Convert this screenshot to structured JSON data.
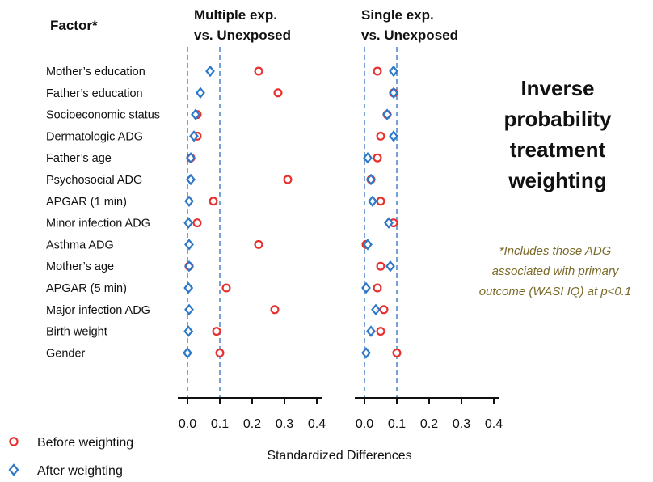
{
  "chart_data": {
    "type": "scatter",
    "factor_header": "Factor*",
    "factors": [
      "Mother’s education",
      "Father’s education",
      "Socioeconomic status",
      "Dermatologic ADG",
      "Father’s age",
      "Psychosocial ADG",
      "APGAR (1 min)",
      "Minor infection ADG",
      "Asthma ADG",
      "Mother’s age",
      "APGAR (5 min)",
      "Major infection ADG",
      "Birth weight",
      "Gender"
    ],
    "panels": [
      {
        "title_line1": "Multiple exp.",
        "title_line2": "vs. Unexposed",
        "xlim": [
          0,
          0.4
        ],
        "ticks": [
          "0.0",
          "0.1",
          "0.2",
          "0.3",
          "0.4"
        ],
        "reference_lines": [
          0,
          0.1
        ],
        "series": [
          {
            "name": "Before weighting",
            "values": [
              0.22,
              0.28,
              0.03,
              0.03,
              0.01,
              0.31,
              0.08,
              0.03,
              0.22,
              0.005,
              0.12,
              0.27,
              0.09,
              0.1
            ]
          },
          {
            "name": "After weighting",
            "values": [
              0.07,
              0.04,
              0.025,
              0.02,
              0.01,
              0.01,
              0.005,
              0.003,
              0.005,
              0.005,
              0.003,
              0.005,
              0.003,
              0.0
            ]
          }
        ]
      },
      {
        "title_line1": "Single exp.",
        "title_line2": "vs. Unexposed",
        "xlim": [
          0,
          0.4
        ],
        "ticks": [
          "0.0",
          "0.1",
          "0.2",
          "0.3",
          "0.4"
        ],
        "reference_lines": [
          0,
          0.1
        ],
        "series": [
          {
            "name": "Before weighting",
            "values": [
              0.04,
              0.09,
              0.07,
              0.05,
              0.04,
              0.02,
              0.05,
              0.09,
              0.005,
              0.05,
              0.04,
              0.06,
              0.05,
              0.1
            ]
          },
          {
            "name": "After weighting",
            "values": [
              0.09,
              0.09,
              0.07,
              0.09,
              0.01,
              0.02,
              0.025,
              0.075,
              0.01,
              0.08,
              0.005,
              0.035,
              0.02,
              0.005
            ]
          }
        ]
      }
    ],
    "xlabel": "Standardized Differences",
    "legend": [
      "Before weighting",
      "After weighting"
    ],
    "legend_placement": "bottom-left",
    "side_title": [
      "Inverse",
      "probability",
      "treatment",
      "weighting"
    ],
    "footnote": [
      "*Includes those ADG",
      "associated with primary",
      "outcome (WASI IQ) at p<0.1"
    ],
    "colors": {
      "before": "#e8312e",
      "after": "#2e78c8",
      "reference": "#3a7ac6",
      "axis": "#111111",
      "footnote": "#7a6a2a"
    }
  }
}
